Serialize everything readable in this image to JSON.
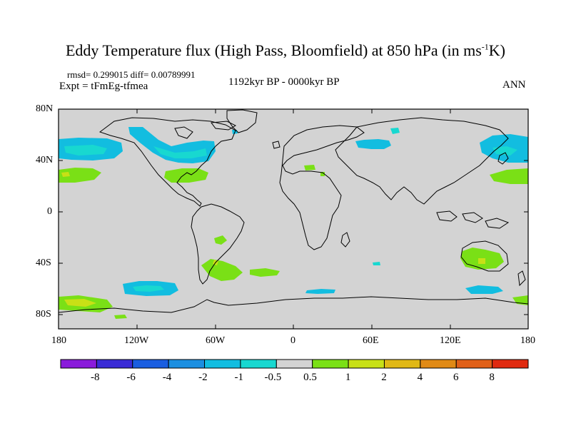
{
  "title": {
    "main": "Eddy Temperature flux (High Pass, Bloomfield) at 850 hPa (in ms",
    "sup": "-1",
    "end": "K)"
  },
  "stats": "rmsd= 0.299015 diff= 0.00789991",
  "experiment": "Expt = tFmEg-tfmea",
  "period": "1192kyr BP - 0000kyr BP",
  "season": "ANN",
  "lat_ticks": [
    "80N",
    "40N",
    "0",
    "40S",
    "80S"
  ],
  "lon_ticks": [
    "180",
    "120W",
    "60W",
    "0",
    "60E",
    "120E",
    "180"
  ],
  "colorbar": {
    "labels": [
      "-8",
      "-6",
      "-4",
      "-2",
      "-1",
      "-0.5",
      "0.5",
      "1",
      "2",
      "4",
      "6",
      "8"
    ],
    "colors": [
      "#8a1bdb",
      "#3a2bd6",
      "#1a5ee0",
      "#1c8fe0",
      "#12bde0",
      "#18d8d0",
      "#d3d3d3",
      "#7ae016",
      "#c8e016",
      "#e0b815",
      "#e08a15",
      "#e06018",
      "#e02a10"
    ]
  },
  "colors": {
    "background_land_ocean": "#d3d3d3",
    "positive_flux": "#7ae016",
    "negative_flux_light": "#18d8d0",
    "negative_flux": "#12bde0"
  }
}
